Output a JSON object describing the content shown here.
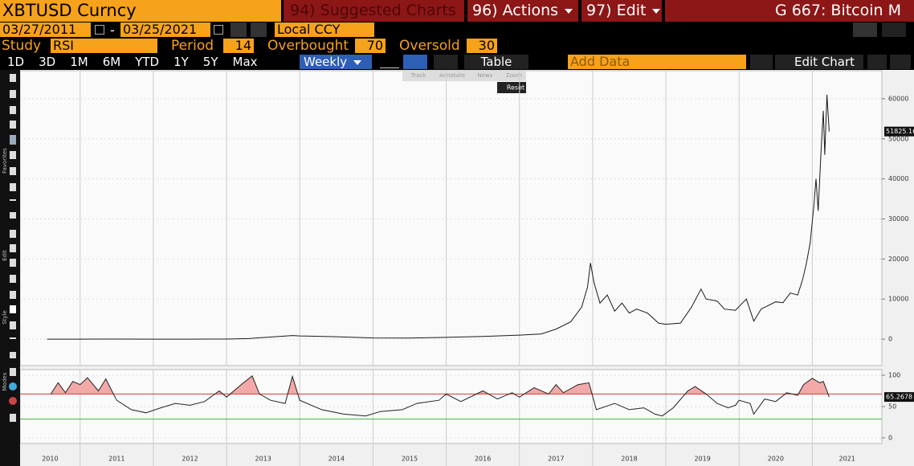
{
  "header": {
    "ticker": "XBTUSD Curncy",
    "suggested": "94) Suggested Charts",
    "actions": "96) Actions",
    "edit": "97) Edit",
    "title": "G 667: Bitcoin M"
  },
  "date_bar": {
    "start": "03/27/2011",
    "separator": "-",
    "end": "03/25/2021",
    "currency": "Local CCY"
  },
  "study_bar": {
    "study_label": "Study",
    "study": "RSI",
    "period_label": "Period",
    "period": 14,
    "overbought_label": "Overbought",
    "overbought": 70,
    "oversold_label": "Oversold",
    "oversold": 30
  },
  "toolbar": {
    "ranges": [
      "1D",
      "3D",
      "1M",
      "6M",
      "YTD",
      "1Y",
      "5Y",
      "Max"
    ],
    "frequency": "Weekly",
    "table": "Table",
    "add_data": "Add Data",
    "edit_chart": "Edit Chart"
  },
  "tools_menu": [
    "Track",
    "Annotate",
    "News",
    "Zoom",
    "Reset"
  ],
  "side_labels": [
    "Favorites",
    "Edit",
    "Style",
    "Modes"
  ],
  "chart_data": [
    {
      "type": "line",
      "color": "#1a1a1a",
      "grid": true,
      "x": [
        2010.55,
        2011.0,
        2011.5,
        2012.0,
        2012.5,
        2013.0,
        2013.3,
        2013.9,
        2014.0,
        2014.5,
        2015.0,
        2015.5,
        2016.0,
        2016.5,
        2017.0,
        2017.3,
        2017.5,
        2017.7,
        2017.85,
        2017.93,
        2017.97,
        2018.02,
        2018.1,
        2018.2,
        2018.3,
        2018.4,
        2018.5,
        2018.6,
        2018.75,
        2018.9,
        2019.0,
        2019.2,
        2019.35,
        2019.48,
        2019.55,
        2019.7,
        2019.8,
        2019.95,
        2020.1,
        2020.2,
        2020.3,
        2020.5,
        2020.6,
        2020.7,
        2020.8,
        2020.87,
        2020.92,
        2020.97,
        2021.02,
        2021.05,
        2021.08,
        2021.12,
        2021.15,
        2021.17,
        2021.2,
        2021.23
      ],
      "values": [
        1,
        1,
        15,
        6,
        7,
        13,
        140,
        900,
        800,
        600,
        300,
        260,
        430,
        650,
        1000,
        1300,
        2500,
        4300,
        8000,
        13000,
        19000,
        14000,
        9000,
        11000,
        7000,
        9000,
        6500,
        7500,
        6500,
        4000,
        3700,
        4000,
        8000,
        12500,
        10000,
        9500,
        7500,
        7200,
        10000,
        4500,
        7500,
        9300,
        9100,
        11500,
        11000,
        15000,
        19000,
        24000,
        33000,
        40000,
        32000,
        47000,
        57000,
        46000,
        61000,
        51825.16
      ],
      "xlim": [
        2010.18,
        2021.95
      ],
      "ylim": [
        -6600,
        67000
      ],
      "yticks": [
        0,
        10000,
        20000,
        30000,
        40000,
        50000,
        60000
      ]
    },
    {
      "type": "line",
      "color": "#222222",
      "grid": true,
      "x": [
        2010.6,
        2010.7,
        2010.8,
        2010.9,
        2011.0,
        2011.1,
        2011.25,
        2011.35,
        2011.5,
        2011.7,
        2011.9,
        2012.1,
        2012.3,
        2012.5,
        2012.7,
        2012.9,
        2013.0,
        2013.2,
        2013.35,
        2013.45,
        2013.6,
        2013.8,
        2013.9,
        2014.0,
        2014.3,
        2014.6,
        2014.9,
        2015.1,
        2015.4,
        2015.6,
        2015.9,
        2016.0,
        2016.2,
        2016.5,
        2016.7,
        2016.9,
        2017.0,
        2017.2,
        2017.4,
        2017.5,
        2017.6,
        2017.8,
        2017.95,
        2018.05,
        2018.3,
        2018.5,
        2018.7,
        2018.85,
        2018.95,
        2019.1,
        2019.3,
        2019.4,
        2019.55,
        2019.7,
        2019.85,
        2019.95,
        2020.0,
        2020.15,
        2020.2,
        2020.35,
        2020.5,
        2020.65,
        2020.8,
        2020.88,
        2021.0,
        2021.1,
        2021.15,
        2021.2,
        2021.23
      ],
      "values": [
        70,
        88,
        72,
        90,
        85,
        96,
        75,
        94,
        60,
        45,
        40,
        48,
        55,
        52,
        58,
        75,
        65,
        85,
        99,
        70,
        60,
        55,
        98,
        60,
        45,
        38,
        35,
        42,
        45,
        55,
        60,
        70,
        58,
        75,
        62,
        72,
        65,
        80,
        70,
        85,
        72,
        85,
        88,
        45,
        55,
        45,
        48,
        38,
        35,
        48,
        75,
        82,
        70,
        55,
        48,
        52,
        60,
        55,
        38,
        62,
        58,
        72,
        68,
        85,
        95,
        88,
        90,
        75,
        65.2678
      ],
      "xlim": [
        2010.18,
        2021.95
      ],
      "ylim": [
        -9,
        109
      ],
      "yticks": [
        0,
        50,
        100
      ],
      "xticks": [
        2010,
        2011,
        2012,
        2013,
        2014,
        2015,
        2016,
        2017,
        2018,
        2019,
        2020,
        2021
      ]
    }
  ]
}
